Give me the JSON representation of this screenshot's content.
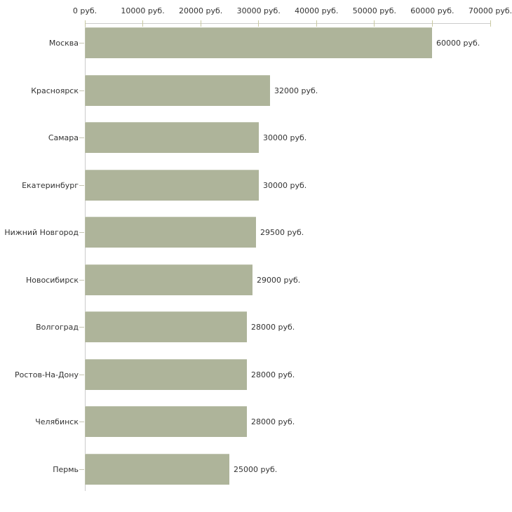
{
  "chart_data": {
    "type": "bar",
    "orientation": "horizontal",
    "title": "",
    "xlabel": "",
    "ylabel": "",
    "categories": [
      "Москва",
      "Красноярск",
      "Самара",
      "Екатеринбург",
      "Нижний Новгород",
      "Новосибирск",
      "Волгоград",
      "Ростов-На-Дону",
      "Челябинск",
      "Пермь"
    ],
    "values": [
      60000,
      32000,
      30000,
      30000,
      29500,
      29000,
      28000,
      28000,
      28000,
      25000
    ],
    "value_labels": [
      "60000 руб.",
      "32000 руб.",
      "30000 руб.",
      "30000 руб.",
      "29500 руб.",
      "29000 руб.",
      "28000 руб.",
      "28000 руб.",
      "28000 руб.",
      "25000 руб."
    ],
    "x_ticks": [
      0,
      10000,
      20000,
      30000,
      40000,
      50000,
      60000,
      70000
    ],
    "x_tick_labels": [
      "0 руб.",
      "10000 руб.",
      "20000 руб.",
      "30000 руб.",
      "40000 руб.",
      "50000 руб.",
      "60000 руб.",
      "70000 руб."
    ],
    "xlim": [
      0,
      70000
    ],
    "grid": false,
    "legend_position": "none",
    "colors": {
      "bar": "#aeb49a",
      "axis": "#cccccc",
      "axis_tick": "#c9c9a1",
      "category_tick": "#c5c5b2",
      "text": "#333333",
      "background": "#ffffff"
    }
  }
}
